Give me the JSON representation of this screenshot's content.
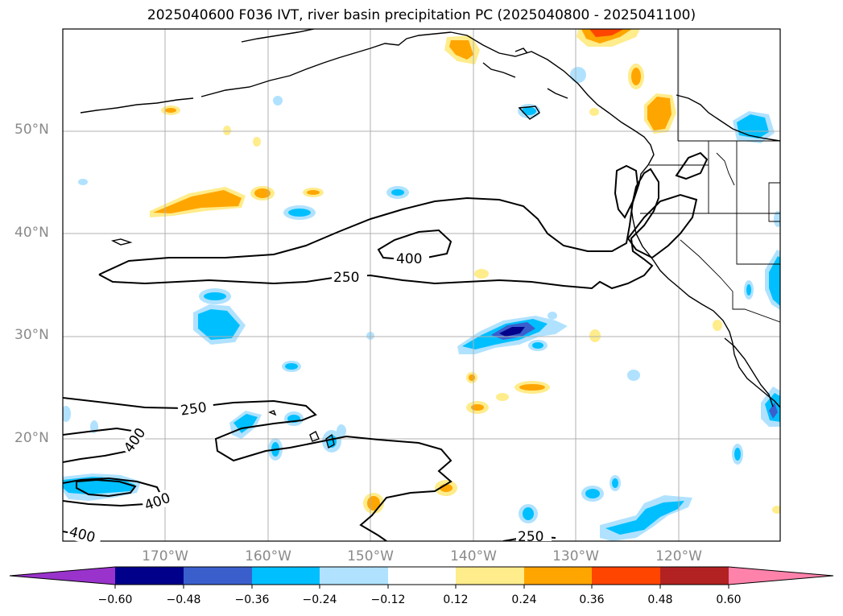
{
  "title": "2025040600 F036 IVT, river basin precipitation PC (2025040800 - 2025041100)",
  "latitude_labels": [
    "50°N",
    "40°N",
    "30°N",
    "20°N"
  ],
  "longitude_labels": [
    "170°W",
    "160°W",
    "150°W",
    "140°W",
    "130°W",
    "120°W"
  ],
  "contour_labels": [
    "400",
    "250",
    "250",
    "400",
    "400",
    "400",
    "250"
  ],
  "colorbar": {
    "ticks": [
      "−0.60",
      "−0.48",
      "−0.36",
      "−0.24",
      "−0.12",
      "0.12",
      "0.24",
      "0.36",
      "0.48",
      "0.60"
    ],
    "colors": {
      "under": "#9933cc",
      "neg_060": "#00008b",
      "neg_048": "#3a5fcd",
      "neg_036": "#00bfff",
      "neg_024": "#b0e2ff",
      "neutral": "#ffffff",
      "pos_012": "#ffec8b",
      "pos_024": "#ffa500",
      "pos_036": "#ff4500",
      "pos_048": "#b22222",
      "over": "#ff82ab"
    }
  },
  "colors": {
    "gridline": "#b0b0b0",
    "axis_label": "#8a8a8a",
    "contour": "#000000"
  }
}
